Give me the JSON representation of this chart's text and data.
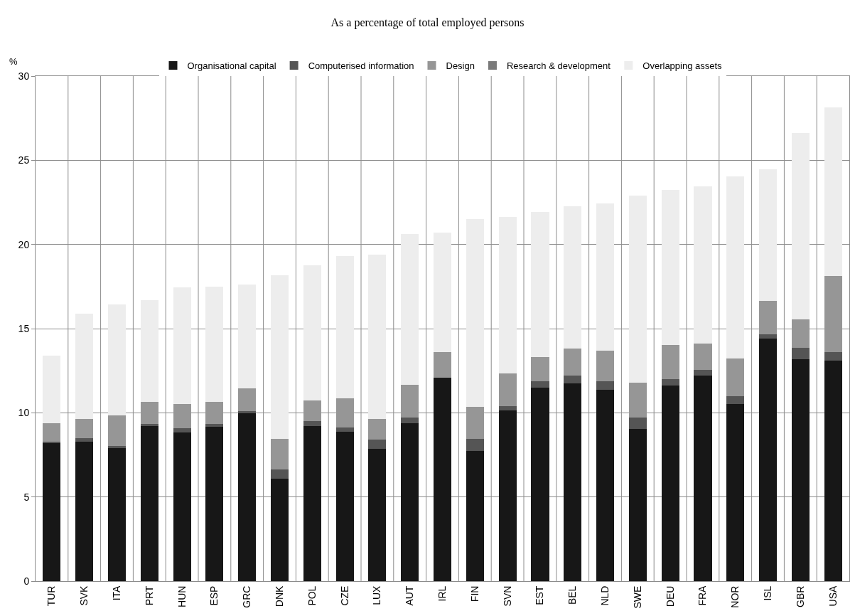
{
  "chart_data": {
    "type": "bar",
    "stacked": true,
    "title": "As a percentage of total employed persons",
    "ylabel": "%",
    "categories": [
      "TUR",
      "SVK",
      "ITA",
      "PRT",
      "HUN",
      "ESP",
      "GRC",
      "DNK",
      "POL",
      "CZE",
      "LUX",
      "AUT",
      "IRL",
      "FIN",
      "SVN",
      "EST",
      "BEL",
      "NLD",
      "SWE",
      "DEU",
      "FRA",
      "NOR",
      "ISL",
      "GBR",
      "USA"
    ],
    "series": [
      {
        "name": "Organisational capital",
        "color": "#171717",
        "values": [
          8.21,
          8.29,
          7.89,
          9.22,
          8.83,
          9.18,
          9.99,
          6.08,
          9.22,
          8.89,
          7.87,
          9.38,
          12.1,
          7.75,
          10.13,
          11.51,
          11.75,
          11.38,
          9.05,
          11.63,
          12.22,
          10.53,
          14.42,
          13.19,
          13.08
        ]
      },
      {
        "name": "Computerised information",
        "color": "#555555",
        "values": [
          0.07,
          0.21,
          0.12,
          0.12,
          0.27,
          0.16,
          0.11,
          0.57,
          0.27,
          0.24,
          0.55,
          0.34,
          0,
          0.71,
          0.28,
          0.37,
          0.46,
          0.48,
          0.68,
          0.38,
          0.33,
          0.47,
          0.23,
          0.68,
          0.51
        ]
      },
      {
        "name": "Design",
        "color": "#969696",
        "values": [
          1.1,
          1.12,
          1.82,
          1.31,
          1.42,
          1.31,
          1.35,
          1.79,
          1.24,
          1.73,
          1.21,
          1.95,
          1.5,
          1.89,
          1.94,
          1.44,
          1.6,
          1.82,
          2.06,
          2.02,
          1.56,
          2.22,
          1.98,
          1.68,
          4.53
        ]
      },
      {
        "name": "Research & development",
        "color": "#7a7a7a",
        "values": [
          0,
          0,
          0,
          0,
          0,
          0,
          0,
          0,
          0,
          0,
          0,
          0,
          0,
          0,
          0,
          0,
          0,
          0,
          0,
          0,
          0,
          0,
          0,
          0,
          0
        ]
      },
      {
        "name": "Overlapping assets",
        "color": "#ededed",
        "values": [
          4.0,
          6.28,
          6.62,
          6.05,
          6.95,
          6.85,
          6.17,
          9.74,
          8.02,
          8.44,
          9.75,
          8.93,
          7.1,
          11.17,
          9.3,
          8.61,
          8.46,
          8.74,
          11.11,
          9.2,
          9.34,
          10.84,
          7.82,
          11.05,
          10.03
        ]
      }
    ],
    "ylim": [
      0,
      30
    ],
    "yticks": [
      0,
      5,
      10,
      15,
      20,
      25,
      30
    ],
    "grid": true,
    "legend": "top"
  }
}
